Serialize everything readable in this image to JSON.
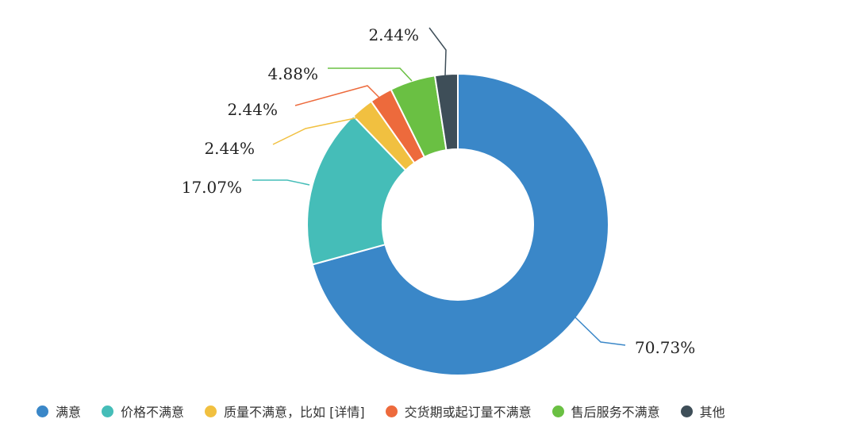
{
  "chart_data": {
    "type": "pie",
    "title": "",
    "categories": [
      "满意",
      "价格不满意",
      "质量不满意，比如 [详情]",
      "交货期或起订量不满意",
      "售后服务不满意",
      "其他"
    ],
    "values": [
      70.73,
      17.07,
      2.44,
      2.44,
      4.88,
      2.44
    ],
    "labels": [
      "70.73%",
      "17.07%",
      "2.44%",
      "2.44%",
      "4.88%",
      "2.44%"
    ],
    "colors": [
      "#3a87c8",
      "#45bdb8",
      "#f1c040",
      "#ed6a3c",
      "#6ac043",
      "#3e4e58"
    ],
    "donut": true,
    "legend_position": "bottom"
  }
}
